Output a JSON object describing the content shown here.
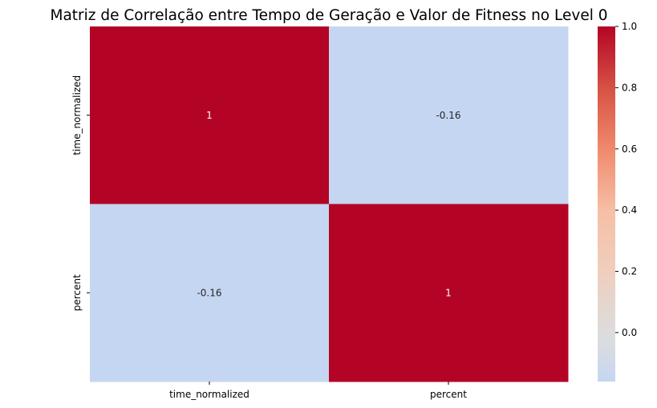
{
  "chart_data": {
    "type": "heatmap",
    "title": "Matriz de Correlação entre Tempo de Geração e Valor de Fitness no Level 0",
    "xlabel": "",
    "ylabel": "",
    "x_categories": [
      "time_normalized",
      "percent"
    ],
    "y_categories": [
      "time_normalized",
      "percent"
    ],
    "values": [
      [
        1,
        -0.16
      ],
      [
        -0.16,
        1
      ]
    ],
    "annotations": [
      [
        "1",
        "-0.16"
      ],
      [
        "-0.16",
        "1"
      ]
    ],
    "colormap": "coolwarm",
    "vmin": -0.16,
    "vmax": 1.0,
    "colorbar": {
      "ticks": [
        -0.0,
        0.2,
        0.4,
        0.6,
        0.8,
        1.0
      ],
      "tick_labels": [
        "0.0",
        "0.2",
        "0.4",
        "0.6",
        "0.8",
        "1.0"
      ]
    },
    "colors": {
      "high": "#b40426",
      "low": "#c5d6f2",
      "mid": "#dddcdc"
    },
    "grid": false
  }
}
